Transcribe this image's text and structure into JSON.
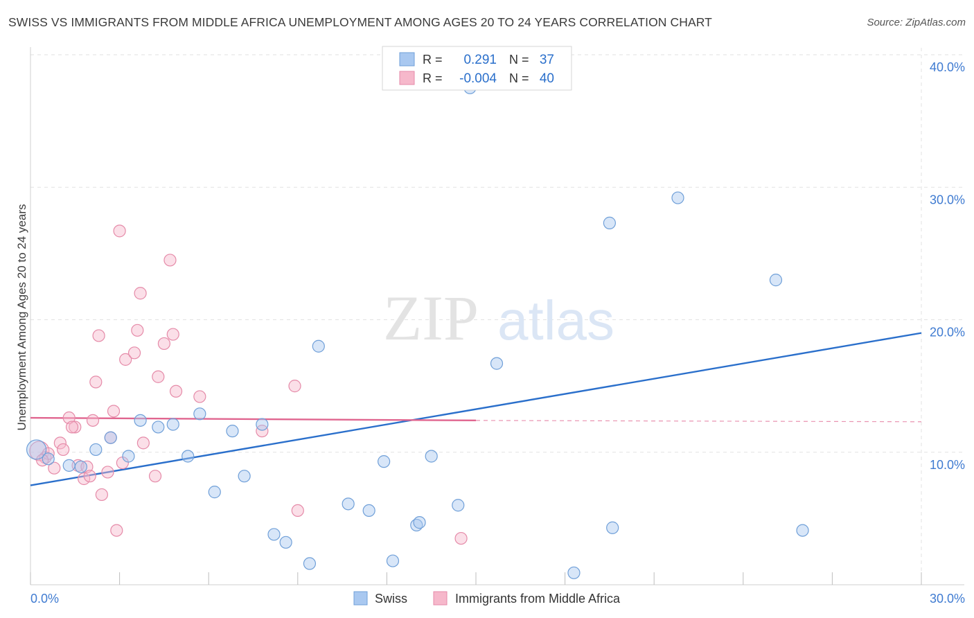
{
  "title": "SWISS VS IMMIGRANTS FROM MIDDLE AFRICA UNEMPLOYMENT AMONG AGES 20 TO 24 YEARS CORRELATION CHART",
  "source": "Source: ZipAtlas.com",
  "watermark": {
    "zip": "ZIP",
    "atlas": "atlas"
  },
  "legend_box": {
    "rows": [
      {
        "r_label": "R =",
        "r_value": "0.291",
        "n_label": "N =",
        "n_value": "37",
        "color": "#a9c8f0",
        "stroke": "#6f9fd8"
      },
      {
        "r_label": "R =",
        "r_value": "-0.004",
        "n_label": "N =",
        "n_value": "40",
        "color": "#f6b8cb",
        "stroke": "#e58aa8"
      }
    ]
  },
  "chart_data": {
    "type": "scatter",
    "title": "SWISS VS IMMIGRANTS FROM MIDDLE AFRICA UNEMPLOYMENT AMONG AGES 20 TO 24 YEARS CORRELATION CHART",
    "xlabel": "",
    "ylabel": "Unemployment Among Ages 20 to 24 years",
    "xlim": [
      0,
      30
    ],
    "ylim": [
      0,
      40
    ],
    "x_tick_labels": [
      "0.0%",
      "30.0%"
    ],
    "y_ticks": [
      10,
      20,
      30,
      40
    ],
    "y_tick_labels": [
      "10.0%",
      "20.0%",
      "30.0%",
      "40.0%"
    ],
    "grid": true,
    "legend_position": "bottom-center",
    "series": [
      {
        "name": "Swiss",
        "color": "#a9c8f0",
        "stroke": "#6f9fd8",
        "line_color": "#2a6fcb",
        "trend": {
          "x": [
            0,
            30
          ],
          "y": [
            7.5,
            19.0
          ],
          "dashed_x": null
        },
        "points": [
          [
            0.2,
            10.2
          ],
          [
            1.3,
            9.0
          ],
          [
            1.7,
            8.9
          ],
          [
            2.2,
            10.2
          ],
          [
            2.7,
            11.1
          ],
          [
            3.3,
            9.7
          ],
          [
            3.7,
            12.4
          ],
          [
            4.3,
            11.9
          ],
          [
            4.8,
            12.1
          ],
          [
            5.3,
            9.7
          ],
          [
            5.7,
            12.9
          ],
          [
            6.2,
            7.0
          ],
          [
            6.8,
            11.6
          ],
          [
            7.2,
            8.2
          ],
          [
            7.8,
            12.1
          ],
          [
            8.2,
            3.8
          ],
          [
            8.6,
            3.2
          ],
          [
            9.4,
            1.6
          ],
          [
            9.7,
            18.0
          ],
          [
            10.7,
            6.1
          ],
          [
            11.4,
            5.6
          ],
          [
            11.9,
            9.3
          ],
          [
            12.2,
            1.8
          ],
          [
            13.0,
            4.5
          ],
          [
            13.1,
            4.7
          ],
          [
            13.5,
            9.7
          ],
          [
            14.4,
            6.0
          ],
          [
            14.8,
            37.5
          ],
          [
            15.7,
            16.7
          ],
          [
            17.6,
            40.0
          ],
          [
            18.3,
            0.9
          ],
          [
            19.5,
            27.3
          ],
          [
            19.6,
            4.3
          ],
          [
            21.8,
            29.2
          ],
          [
            25.1,
            23.0
          ],
          [
            26.0,
            4.1
          ],
          [
            0.6,
            9.5
          ]
        ]
      },
      {
        "name": "Immigrants from Middle Africa",
        "color": "#f6b8cb",
        "stroke": "#e58aa8",
        "line_color": "#e0658f",
        "trend": {
          "x": [
            0,
            15
          ],
          "y": [
            12.6,
            12.4
          ],
          "dashed_x": [
            15,
            30
          ],
          "dashed_y": [
            12.4,
            12.3
          ]
        },
        "points": [
          [
            0.3,
            10.1
          ],
          [
            0.5,
            9.6
          ],
          [
            0.6,
            9.9
          ],
          [
            0.8,
            8.8
          ],
          [
            1.0,
            10.7
          ],
          [
            1.1,
            10.2
          ],
          [
            1.3,
            12.6
          ],
          [
            1.5,
            11.9
          ],
          [
            1.6,
            9.0
          ],
          [
            1.8,
            8.0
          ],
          [
            1.9,
            8.9
          ],
          [
            2.0,
            8.2
          ],
          [
            2.1,
            12.4
          ],
          [
            2.2,
            15.3
          ],
          [
            2.3,
            18.8
          ],
          [
            2.4,
            6.8
          ],
          [
            2.6,
            8.5
          ],
          [
            2.7,
            11.1
          ],
          [
            2.8,
            13.1
          ],
          [
            2.9,
            4.1
          ],
          [
            3.0,
            26.7
          ],
          [
            3.1,
            9.2
          ],
          [
            3.2,
            17.0
          ],
          [
            3.5,
            17.5
          ],
          [
            3.6,
            19.2
          ],
          [
            3.7,
            22.0
          ],
          [
            3.8,
            10.7
          ],
          [
            4.2,
            8.2
          ],
          [
            4.3,
            15.7
          ],
          [
            4.5,
            18.2
          ],
          [
            4.7,
            24.5
          ],
          [
            4.8,
            18.9
          ],
          [
            4.9,
            14.6
          ],
          [
            5.7,
            14.2
          ],
          [
            7.8,
            11.6
          ],
          [
            8.9,
            15.0
          ],
          [
            9.0,
            5.6
          ],
          [
            14.5,
            3.5
          ],
          [
            0.4,
            9.4
          ],
          [
            1.4,
            11.9
          ]
        ]
      }
    ]
  },
  "bottom_legend": [
    {
      "label": "Swiss",
      "color": "#a9c8f0",
      "stroke": "#6f9fd8"
    },
    {
      "label": "Immigrants from Middle Africa",
      "color": "#f6b8cb",
      "stroke": "#e58aa8"
    }
  ]
}
